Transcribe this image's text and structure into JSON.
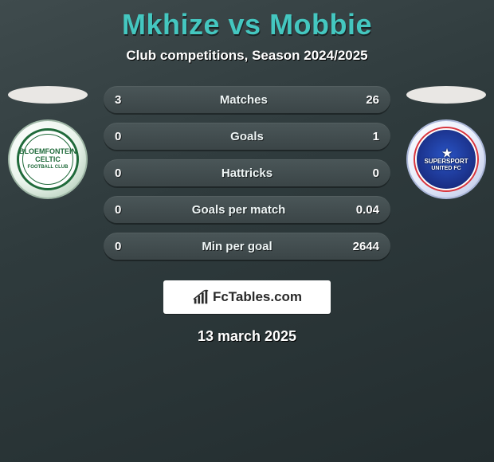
{
  "title_p1": "Mkhize",
  "title_vs": "vs",
  "title_p2": "Mobbie",
  "subtitle": "Club competitions, Season 2024/2025",
  "left": {
    "oval_color": "#e9e7e4",
    "crest_text": "BLOEMFONTEIN CELTIC",
    "crest_sub": "FOOTBALL CLUB",
    "accent": "#1f6a3a"
  },
  "right": {
    "oval_color": "#e9e7e4",
    "crest_top": "SUPERSPORT",
    "crest_bottom": "UNITED FC",
    "accent": "#1a2f86"
  },
  "rows": [
    {
      "l": "3",
      "label": "Matches",
      "r": "26"
    },
    {
      "l": "0",
      "label": "Goals",
      "r": "1"
    },
    {
      "l": "0",
      "label": "Hattricks",
      "r": "0"
    },
    {
      "l": "0",
      "label": "Goals per match",
      "r": "0.04"
    },
    {
      "l": "0",
      "label": "Min per goal",
      "r": "2644"
    }
  ],
  "brand": "FcTables.com",
  "date": "13 march 2025",
  "colors": {
    "title": "#44c7c0",
    "text": "#ffffff",
    "row_bg_top": "#4a5658",
    "row_bg_bottom": "#3b4547",
    "bg_from": "#3f4b4d",
    "bg_to": "#232d2f"
  }
}
